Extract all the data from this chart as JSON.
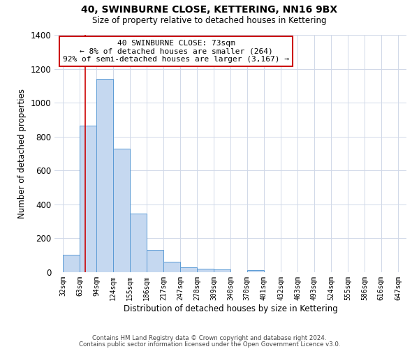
{
  "title": "40, SWINBURNE CLOSE, KETTERING, NN16 9BX",
  "subtitle": "Size of property relative to detached houses in Kettering",
  "xlabel": "Distribution of detached houses by size in Kettering",
  "ylabel": "Number of detached properties",
  "bar_color": "#c5d8f0",
  "bar_edge_color": "#5b9bd5",
  "annotation_box_color": "#ffffff",
  "annotation_box_edge": "#cc0000",
  "red_line_x": 73,
  "annotation_text": "40 SWINBURNE CLOSE: 73sqm\n← 8% of detached houses are smaller (264)\n92% of semi-detached houses are larger (3,167) →",
  "footer_line1": "Contains HM Land Registry data © Crown copyright and database right 2024.",
  "footer_line2": "Contains public sector information licensed under the Open Government Licence v3.0.",
  "bin_edges": [
    32,
    63,
    94,
    124,
    155,
    186,
    217,
    247,
    278,
    309,
    340,
    370,
    401,
    432,
    463,
    493,
    524,
    555,
    586,
    616,
    647
  ],
  "bin_counts": [
    105,
    865,
    1140,
    730,
    345,
    130,
    60,
    30,
    20,
    15,
    0,
    12,
    0,
    0,
    0,
    0,
    0,
    0,
    0,
    0
  ],
  "ylim": [
    0,
    1400
  ],
  "yticks": [
    0,
    200,
    400,
    600,
    800,
    1000,
    1200,
    1400
  ],
  "background_color": "#ffffff",
  "grid_color": "#d0d8e8"
}
